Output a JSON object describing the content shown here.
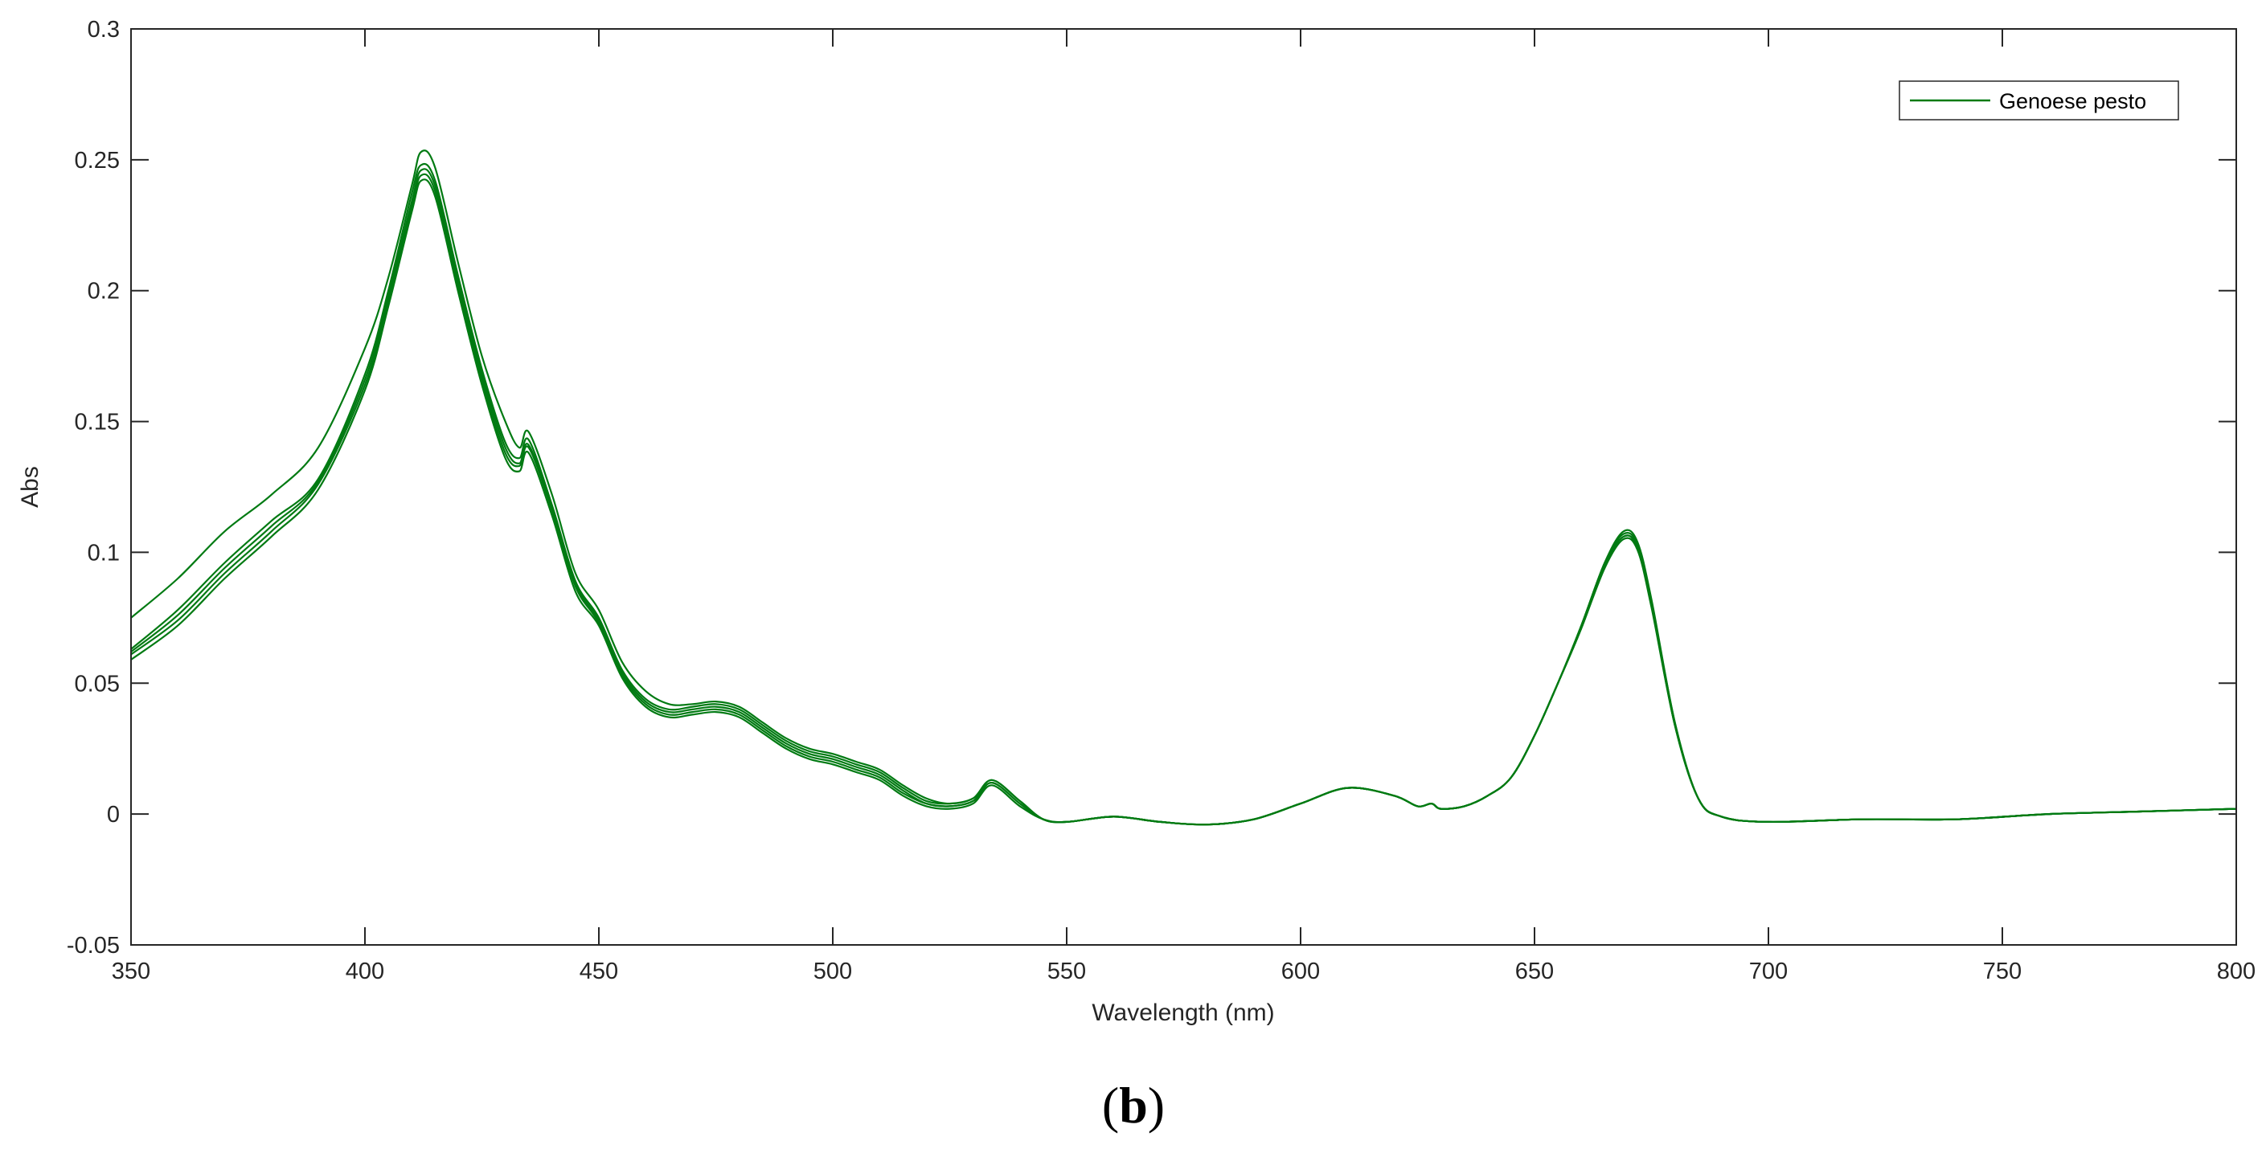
{
  "chart_data": {
    "type": "line",
    "xlabel": "Wavelength (nm)",
    "ylabel": "Abs",
    "xlim": [
      350,
      800
    ],
    "ylim": [
      -0.05,
      0.3
    ],
    "x_ticks": [
      350,
      400,
      450,
      500,
      550,
      600,
      650,
      700,
      750,
      800
    ],
    "y_ticks": [
      -0.05,
      0,
      0.05,
      0.1,
      0.15,
      0.2,
      0.25,
      0.3
    ],
    "y_tick_labels": [
      "-0.05",
      "0",
      "0.05",
      "0.1",
      "0.15",
      "0.2",
      "0.25",
      "0.3"
    ],
    "grid": false,
    "legend": {
      "position": "top-right",
      "entries": [
        "Genoese pesto"
      ]
    },
    "series_color": "#007a12",
    "x": [
      350,
      360,
      370,
      380,
      390,
      400,
      405,
      410,
      412,
      415,
      420,
      425,
      430,
      433,
      435,
      440,
      445,
      450,
      455,
      460,
      465,
      470,
      475,
      480,
      485,
      490,
      495,
      500,
      505,
      510,
      515,
      520,
      525,
      530,
      534,
      540,
      545,
      550,
      560,
      570,
      580,
      590,
      600,
      610,
      620,
      625,
      628,
      630,
      635,
      640,
      645,
      650,
      655,
      660,
      665,
      669,
      672,
      675,
      680,
      685,
      690,
      700,
      720,
      740,
      760,
      780,
      800
    ],
    "series": [
      {
        "name": "Genoese pesto",
        "values": [
          0.075,
          0.09,
          0.108,
          0.122,
          0.14,
          0.178,
          0.205,
          0.24,
          0.253,
          0.247,
          0.21,
          0.175,
          0.15,
          0.14,
          0.146,
          0.122,
          0.092,
          0.078,
          0.058,
          0.047,
          0.042,
          0.042,
          0.043,
          0.041,
          0.035,
          0.029,
          0.025,
          0.023,
          0.02,
          0.017,
          0.011,
          0.006,
          0.004,
          0.006,
          0.013,
          0.005,
          -0.002,
          -0.003,
          -0.001,
          -0.003,
          -0.004,
          -0.002,
          0.004,
          0.01,
          0.007,
          0.003,
          0.004,
          0.002,
          0.003,
          0.007,
          0.014,
          0.03,
          0.05,
          0.072,
          0.096,
          0.108,
          0.104,
          0.082,
          0.035,
          0.006,
          -0.001,
          -0.003,
          -0.002,
          -0.002,
          0.0,
          0.001,
          0.002
        ]
      },
      {
        "values": [
          0.063,
          0.078,
          0.096,
          0.112,
          0.128,
          0.168,
          0.2,
          0.237,
          0.248,
          0.242,
          0.205,
          0.17,
          0.142,
          0.136,
          0.143,
          0.118,
          0.089,
          0.075,
          0.055,
          0.044,
          0.04,
          0.041,
          0.042,
          0.04,
          0.034,
          0.028,
          0.024,
          0.022,
          0.019,
          0.016,
          0.01,
          0.005,
          0.004,
          0.006,
          0.013,
          0.005,
          -0.002,
          -0.003,
          -0.001,
          -0.003,
          -0.004,
          -0.002,
          0.004,
          0.01,
          0.007,
          0.003,
          0.004,
          0.002,
          0.003,
          0.007,
          0.014,
          0.03,
          0.05,
          0.072,
          0.096,
          0.107,
          0.103,
          0.081,
          0.035,
          0.006,
          -0.001,
          -0.003,
          -0.002,
          -0.002,
          0.0,
          0.001,
          0.002
        ]
      },
      {
        "values": [
          0.062,
          0.076,
          0.094,
          0.11,
          0.127,
          0.166,
          0.198,
          0.234,
          0.246,
          0.24,
          0.203,
          0.168,
          0.14,
          0.134,
          0.141,
          0.117,
          0.088,
          0.074,
          0.054,
          0.043,
          0.039,
          0.04,
          0.041,
          0.039,
          0.033,
          0.027,
          0.023,
          0.021,
          0.018,
          0.015,
          0.009,
          0.004,
          0.003,
          0.005,
          0.012,
          0.004,
          -0.002,
          -0.003,
          -0.001,
          -0.003,
          -0.004,
          -0.002,
          0.004,
          0.01,
          0.007,
          0.003,
          0.004,
          0.002,
          0.003,
          0.007,
          0.014,
          0.03,
          0.05,
          0.071,
          0.095,
          0.106,
          0.102,
          0.08,
          0.034,
          0.006,
          -0.001,
          -0.003,
          -0.002,
          -0.002,
          0.0,
          0.001,
          0.002
        ]
      },
      {
        "values": [
          0.061,
          0.074,
          0.092,
          0.108,
          0.126,
          0.164,
          0.196,
          0.232,
          0.244,
          0.238,
          0.201,
          0.166,
          0.138,
          0.133,
          0.14,
          0.116,
          0.087,
          0.073,
          0.053,
          0.042,
          0.038,
          0.039,
          0.04,
          0.038,
          0.032,
          0.026,
          0.022,
          0.02,
          0.017,
          0.014,
          0.008,
          0.004,
          0.003,
          0.005,
          0.012,
          0.004,
          -0.002,
          -0.003,
          -0.001,
          -0.003,
          -0.004,
          -0.002,
          0.004,
          0.01,
          0.007,
          0.003,
          0.004,
          0.002,
          0.003,
          0.007,
          0.014,
          0.03,
          0.05,
          0.071,
          0.095,
          0.106,
          0.102,
          0.08,
          0.034,
          0.006,
          -0.001,
          -0.003,
          -0.002,
          -0.002,
          0.0,
          0.001,
          0.002
        ]
      },
      {
        "values": [
          0.059,
          0.072,
          0.09,
          0.106,
          0.124,
          0.162,
          0.194,
          0.23,
          0.242,
          0.236,
          0.199,
          0.164,
          0.136,
          0.131,
          0.138,
          0.114,
          0.085,
          0.072,
          0.052,
          0.041,
          0.037,
          0.038,
          0.039,
          0.037,
          0.031,
          0.025,
          0.021,
          0.019,
          0.016,
          0.013,
          0.007,
          0.003,
          0.002,
          0.004,
          0.011,
          0.003,
          -0.002,
          -0.003,
          -0.001,
          -0.003,
          -0.004,
          -0.002,
          0.004,
          0.01,
          0.007,
          0.003,
          0.004,
          0.002,
          0.003,
          0.007,
          0.014,
          0.03,
          0.05,
          0.071,
          0.094,
          0.105,
          0.101,
          0.079,
          0.034,
          0.006,
          -0.001,
          -0.003,
          -0.002,
          -0.002,
          0.0,
          0.001,
          0.002
        ]
      }
    ]
  },
  "panel_label": {
    "open": "(",
    "letter": "b",
    "close": ")"
  }
}
